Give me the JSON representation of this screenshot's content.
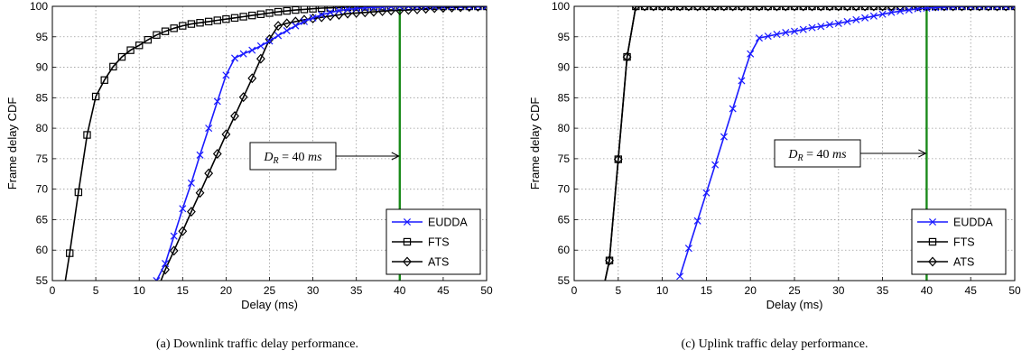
{
  "chart_data": [
    {
      "type": "line",
      "caption": "(a)  Downlink traffic delay performance.",
      "xlabel": "Delay (ms)",
      "ylabel": "Frame delay CDF",
      "xlim": [
        0,
        50
      ],
      "ylim": [
        55,
        100
      ],
      "xticks": [
        0,
        5,
        10,
        15,
        20,
        25,
        30,
        35,
        40,
        45,
        50
      ],
      "yticks": [
        55,
        60,
        65,
        70,
        75,
        80,
        85,
        90,
        95,
        100
      ],
      "grid": true,
      "legend_position": "bottom-right",
      "annotation": {
        "text_main": "D",
        "text_sub": "R",
        "text_rest": " = 40 ms",
        "arrow_to": [
          40,
          75.3
        ]
      },
      "threshold_line": {
        "x": 40,
        "color": "#1a8a1a"
      },
      "series": [
        {
          "name": "EUDDA",
          "color": "#1a1aff",
          "marker": "x",
          "x": [
            12,
            13,
            14,
            15,
            16,
            17,
            18,
            19,
            20,
            21,
            22,
            23,
            24,
            25,
            26,
            27,
            28,
            29,
            30,
            31,
            32,
            33,
            34,
            35,
            36,
            37,
            38,
            39,
            40,
            41,
            42,
            43,
            44,
            45,
            46,
            47,
            48,
            49,
            50
          ],
          "y": [
            55,
            57.8,
            62.3,
            66.8,
            71.0,
            75.6,
            80.0,
            84.4,
            88.7,
            91.5,
            92.2,
            92.8,
            93.5,
            94.3,
            95.2,
            96.0,
            96.8,
            97.5,
            98.1,
            98.6,
            99.0,
            99.3,
            99.5,
            99.65,
            99.75,
            99.82,
            99.88,
            99.92,
            99.95,
            99.96,
            99.97,
            99.98,
            99.99,
            100,
            100,
            100,
            100,
            100,
            100
          ]
        },
        {
          "name": "FTS",
          "color": "#000000",
          "marker": "square",
          "x": [
            1.5,
            2,
            3,
            4,
            5,
            6,
            7,
            8,
            9,
            10,
            11,
            12,
            13,
            14,
            15,
            16,
            17,
            18,
            19,
            20,
            21,
            22,
            23,
            24,
            25,
            26,
            27,
            28,
            29,
            30,
            31,
            32,
            33,
            34,
            35,
            36,
            37,
            38,
            39,
            40,
            41,
            42,
            43,
            44,
            45,
            46,
            47,
            48,
            49,
            50
          ],
          "y": [
            55,
            59.5,
            69.5,
            78.9,
            85.2,
            87.9,
            90.1,
            91.7,
            92.8,
            93.6,
            94.5,
            95.3,
            95.9,
            96.4,
            96.8,
            97.1,
            97.3,
            97.5,
            97.7,
            97.9,
            98.1,
            98.3,
            98.5,
            98.7,
            98.9,
            99.1,
            99.25,
            99.4,
            99.5,
            99.6,
            99.7,
            99.75,
            99.8,
            99.85,
            99.9,
            99.92,
            99.94,
            99.96,
            99.97,
            99.98,
            99.99,
            100,
            100,
            100,
            100,
            100,
            100,
            100,
            100,
            100
          ]
        },
        {
          "name": "ATS",
          "color": "#000000",
          "marker": "diamond",
          "x": [
            12.5,
            13,
            14,
            15,
            16,
            17,
            18,
            19,
            20,
            21,
            22,
            23,
            24,
            25,
            26,
            27,
            28,
            29,
            30,
            31,
            32,
            33,
            34,
            35,
            36,
            37,
            38,
            39,
            40,
            41,
            42,
            43,
            44,
            45,
            46,
            47,
            48,
            49,
            50
          ],
          "y": [
            55,
            56.8,
            59.9,
            63.1,
            66.3,
            69.4,
            72.6,
            75.8,
            79.0,
            82.0,
            85.1,
            88.2,
            91.4,
            94.6,
            96.8,
            97.2,
            97.5,
            97.8,
            98.0,
            98.2,
            98.4,
            98.6,
            98.8,
            98.9,
            99.0,
            99.1,
            99.2,
            99.3,
            99.35,
            99.4,
            99.5,
            99.6,
            99.7,
            99.75,
            99.8,
            99.85,
            99.9,
            99.95,
            100
          ]
        }
      ]
    },
    {
      "type": "line",
      "caption": "(c)  Uplink traffic delay performance.",
      "xlabel": "Delay (ms)",
      "ylabel": "Frame delay CDF",
      "xlim": [
        0,
        50
      ],
      "ylim": [
        55,
        100
      ],
      "xticks": [
        0,
        5,
        10,
        15,
        20,
        25,
        30,
        35,
        40,
        45,
        50
      ],
      "yticks": [
        55,
        60,
        65,
        70,
        75,
        80,
        85,
        90,
        95,
        100
      ],
      "grid": true,
      "legend_position": "bottom-right",
      "annotation": {
        "text_main": "D",
        "text_sub": "R",
        "text_rest": " = 40 ms",
        "arrow_to": [
          40,
          75.3
        ]
      },
      "threshold_line": {
        "x": 40,
        "color": "#1a8a1a"
      },
      "series": [
        {
          "name": "EUDDA",
          "color": "#1a1aff",
          "marker": "x",
          "x": [
            12,
            13,
            14,
            15,
            16,
            17,
            18,
            19,
            20,
            21,
            22,
            23,
            24,
            25,
            26,
            27,
            28,
            29,
            30,
            31,
            32,
            33,
            34,
            35,
            36,
            37,
            38,
            39,
            40,
            41,
            42,
            43,
            44,
            45,
            46,
            47,
            48,
            49,
            50
          ],
          "y": [
            55.7,
            60.3,
            64.8,
            69.4,
            74.0,
            78.6,
            83.2,
            87.8,
            92.2,
            94.8,
            95.1,
            95.4,
            95.7,
            95.9,
            96.2,
            96.5,
            96.7,
            97.0,
            97.2,
            97.5,
            97.8,
            98.1,
            98.4,
            98.7,
            99.0,
            99.2,
            99.4,
            99.6,
            99.7,
            99.8,
            99.9,
            99.95,
            100,
            100,
            100,
            100,
            100,
            100,
            100
          ]
        },
        {
          "name": "FTS",
          "color": "#000000",
          "marker": "square",
          "x": [
            3.5,
            4,
            5,
            6,
            7,
            8,
            9,
            10,
            11,
            12,
            13,
            14,
            15,
            16,
            17,
            18,
            19,
            20,
            21,
            22,
            23,
            24,
            25,
            26,
            27,
            28,
            29,
            30,
            31,
            32,
            33,
            34,
            35,
            36,
            37,
            38,
            39,
            40,
            41,
            42,
            43,
            44,
            45,
            46,
            47,
            48,
            49,
            50
          ],
          "y": [
            55,
            58.3,
            74.9,
            91.7,
            100,
            100,
            100,
            100,
            100,
            100,
            100,
            100,
            100,
            100,
            100,
            100,
            100,
            100,
            100,
            100,
            100,
            100,
            100,
            100,
            100,
            100,
            100,
            100,
            100,
            100,
            100,
            100,
            100,
            100,
            100,
            100,
            100,
            100,
            100,
            100,
            100,
            100,
            100,
            100,
            100,
            100,
            100,
            100
          ]
        },
        {
          "name": "ATS",
          "color": "#000000",
          "marker": "diamond",
          "x": [
            3.5,
            4,
            5,
            6,
            7,
            8,
            9,
            10,
            11,
            12,
            13,
            14,
            15,
            16,
            17,
            18,
            19,
            20,
            21,
            22,
            23,
            24,
            25,
            26,
            27,
            28,
            29,
            30,
            31,
            32,
            33,
            34,
            35,
            36,
            37,
            38,
            39,
            40,
            41,
            42,
            43,
            44,
            45,
            46,
            47,
            48,
            49,
            50
          ],
          "y": [
            55,
            58.3,
            74.9,
            91.7,
            100,
            100,
            100,
            100,
            100,
            100,
            100,
            100,
            100,
            100,
            100,
            100,
            100,
            100,
            100,
            100,
            100,
            100,
            100,
            100,
            100,
            100,
            100,
            100,
            100,
            100,
            100,
            100,
            100,
            100,
            100,
            100,
            100,
            100,
            100,
            100,
            100,
            100,
            100,
            100,
            100,
            100,
            100,
            100
          ]
        }
      ]
    }
  ]
}
